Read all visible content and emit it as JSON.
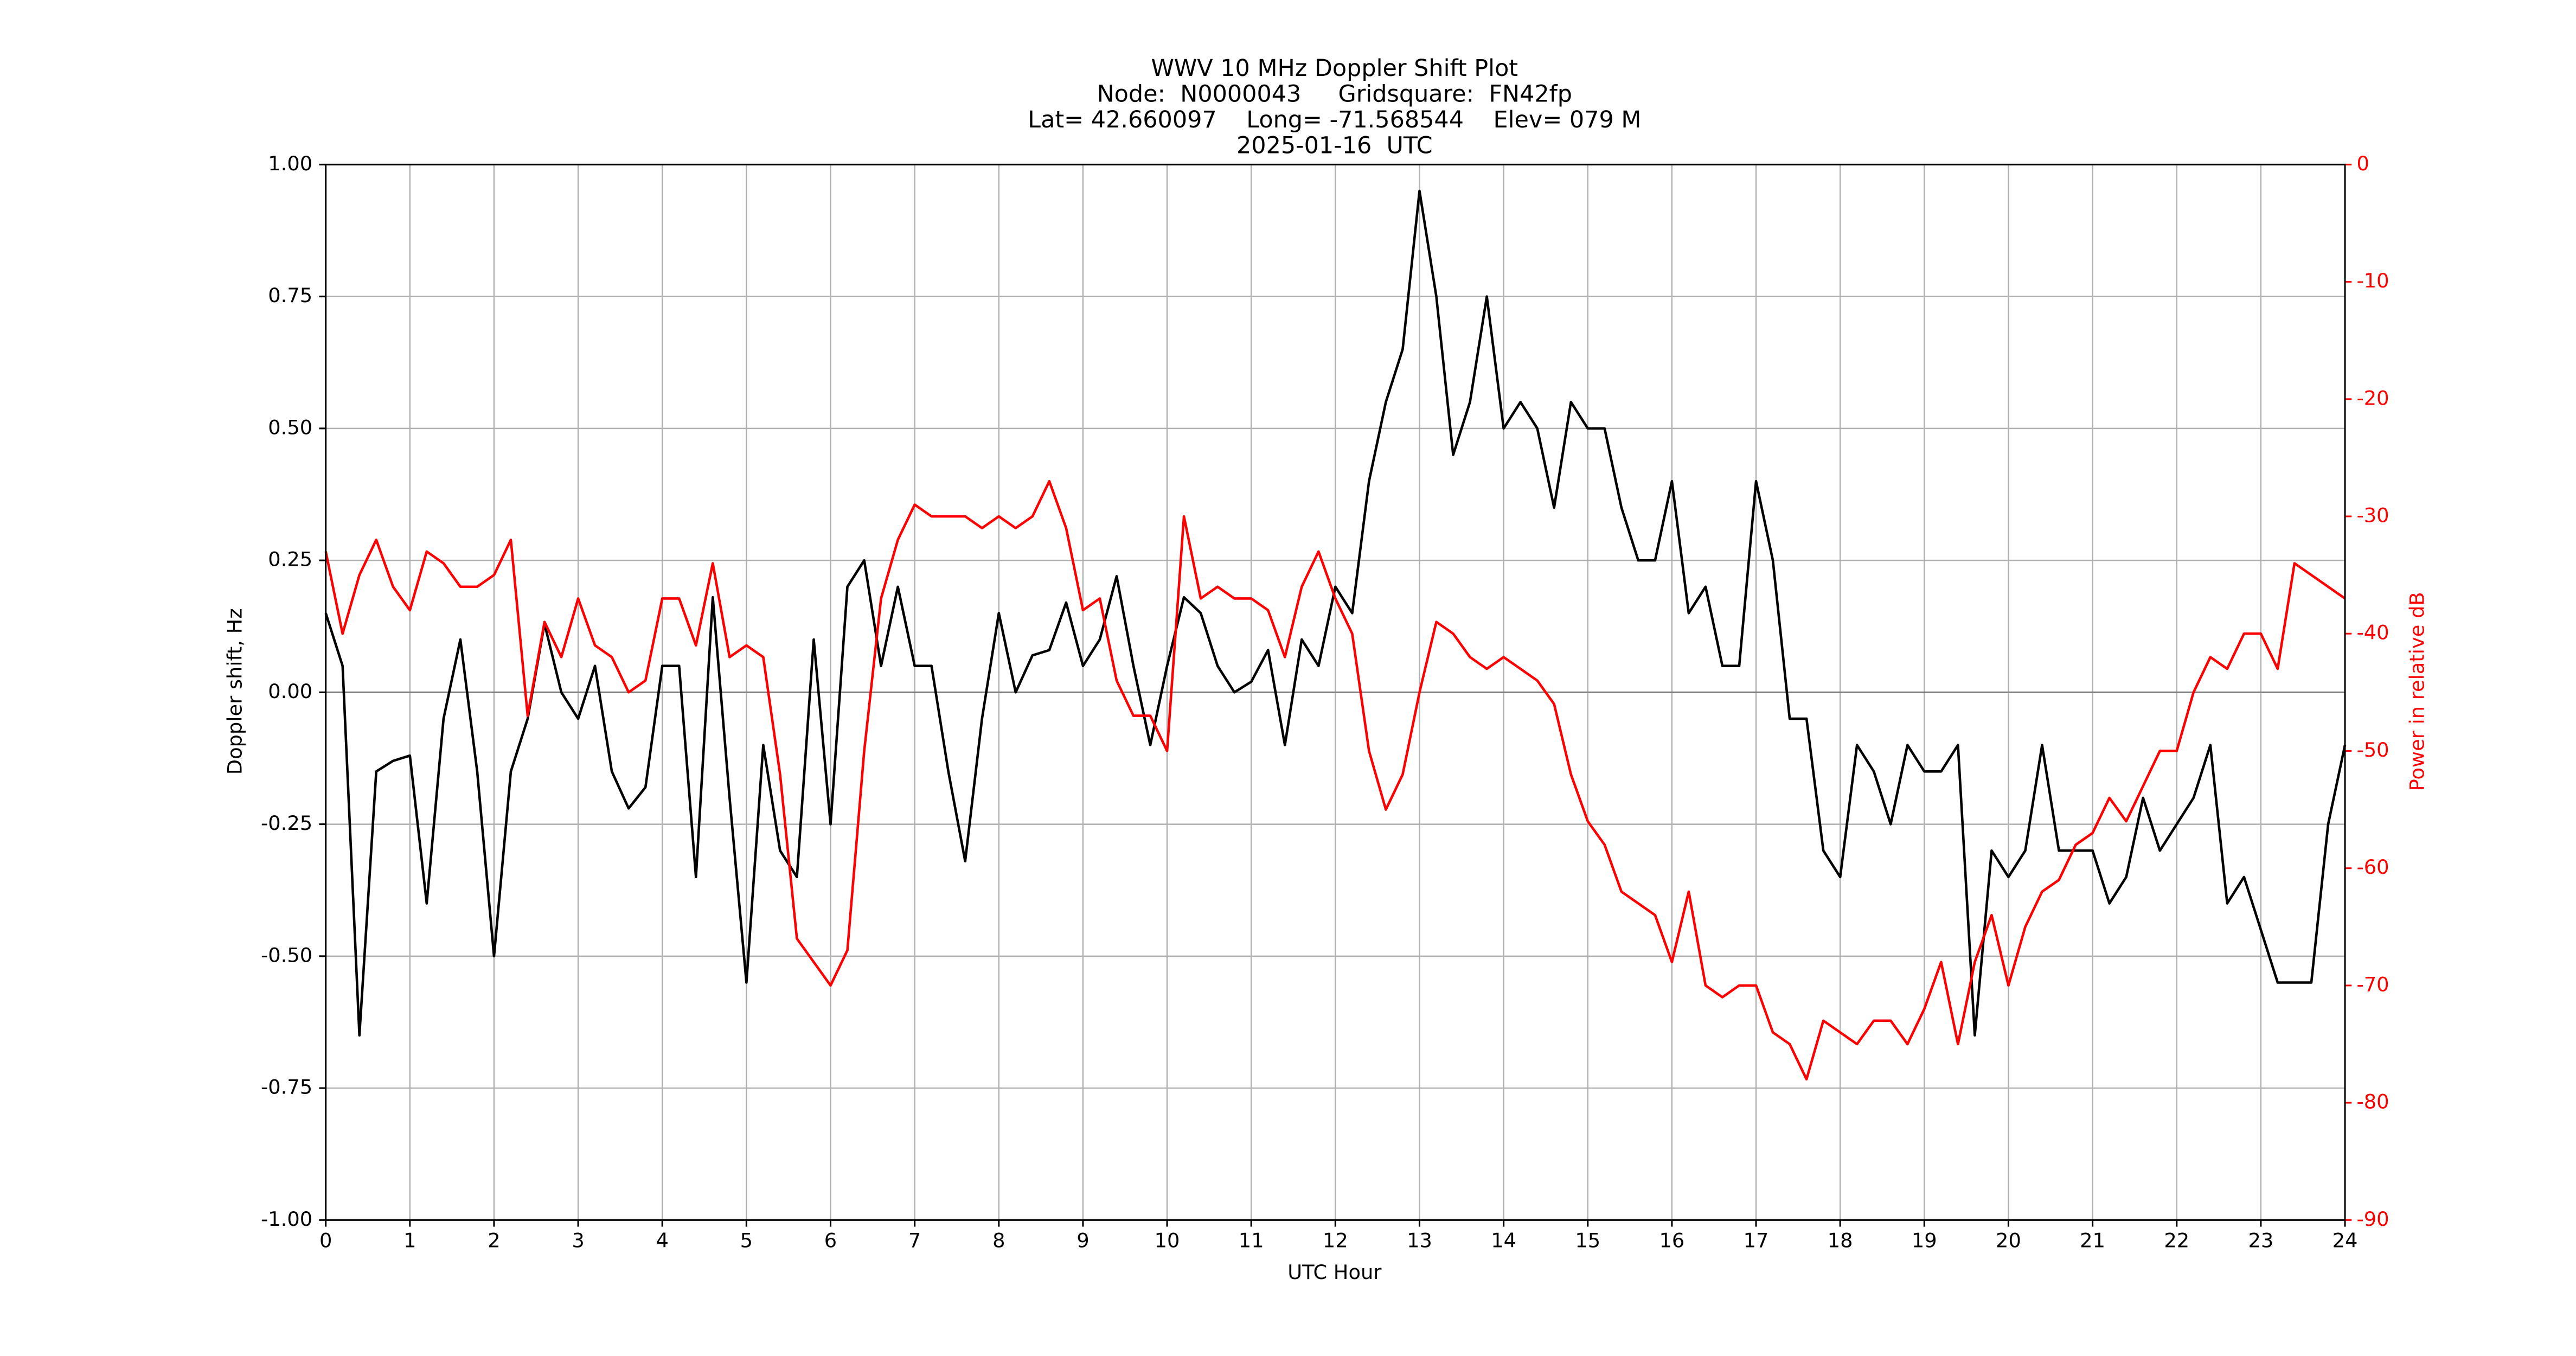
{
  "chart_data": {
    "type": "line",
    "title": [
      "WWV 10 MHz Doppler Shift Plot",
      "Node:  N0000043     Gridsquare:  FN42fp",
      "Lat= 42.660097    Long= -71.568544    Elev= 079 M",
      "2025-01-16  UTC"
    ],
    "xlabel": "UTC Hour",
    "ylabel": "Doppler shift, Hz",
    "y2label": "Power in relative dB",
    "x": [
      0,
      0.2,
      0.4,
      0.6,
      0.8,
      1,
      1.2,
      1.4,
      1.6,
      1.8,
      2,
      2.2,
      2.4,
      2.6,
      2.8,
      3,
      3.2,
      3.4,
      3.6,
      3.8,
      4,
      4.2,
      4.4,
      4.6,
      4.8,
      5,
      5.2,
      5.4,
      5.6,
      5.8,
      6,
      6.2,
      6.4,
      6.6,
      6.8,
      7,
      7.2,
      7.4,
      7.6,
      7.8,
      8,
      8.2,
      8.4,
      8.6,
      8.8,
      9,
      9.2,
      9.4,
      9.6,
      9.8,
      10,
      10.2,
      10.4,
      10.6,
      10.8,
      11,
      11.2,
      11.4,
      11.6,
      11.8,
      12,
      12.2,
      12.4,
      12.6,
      12.8,
      13,
      13.2,
      13.4,
      13.6,
      13.8,
      14,
      14.2,
      14.4,
      14.6,
      14.8,
      15,
      15.2,
      15.4,
      15.6,
      15.8,
      16,
      16.2,
      16.4,
      16.6,
      16.8,
      17,
      17.2,
      17.4,
      17.6,
      17.8,
      18,
      18.2,
      18.4,
      18.6,
      18.8,
      19,
      19.2,
      19.4,
      19.6,
      19.8,
      20,
      20.2,
      20.4,
      20.6,
      20.8,
      21,
      21.2,
      21.4,
      21.6,
      21.8,
      22,
      22.2,
      22.4,
      22.6,
      22.8,
      23,
      23.2,
      23.4,
      23.6,
      23.8,
      24
    ],
    "series": [
      {
        "color": "#000000",
        "values": [
          0.15,
          0.05,
          -0.65,
          -0.15,
          -0.13,
          -0.12,
          -0.4,
          -0.05,
          0.1,
          -0.15,
          -0.5,
          -0.15,
          -0.05,
          0.13,
          0,
          -0.05,
          0.05,
          -0.15,
          -0.22,
          -0.18,
          0.05,
          0.05,
          -0.35,
          0.18,
          -0.2,
          -0.55,
          -0.1,
          -0.3,
          -0.35,
          0.1,
          -0.25,
          0.2,
          0.25,
          0.05,
          0.2,
          0.05,
          0.05,
          -0.15,
          -0.32,
          -0.05,
          0.15,
          0,
          0.07,
          0.08,
          0.17,
          0.05,
          0.1,
          0.22,
          0.05,
          -0.1,
          0.05,
          0.18,
          0.15,
          0.05,
          0,
          0.02,
          0.08,
          -0.1,
          0.1,
          0.05,
          0.2,
          0.15,
          0.4,
          0.55,
          0.65,
          0.95,
          0.75,
          0.45,
          0.55,
          0.75,
          0.5,
          0.55,
          0.5,
          0.35,
          0.55,
          0.5,
          0.5,
          0.35,
          0.25,
          0.25,
          0.4,
          0.15,
          0.2,
          0.05,
          0.05,
          0.4,
          0.25,
          -0.05,
          -0.05,
          -0.3,
          -0.35,
          -0.1,
          -0.15,
          -0.25,
          -0.1,
          -0.15,
          -0.15,
          -0.1,
          -0.65,
          -0.3,
          -0.35,
          -0.3,
          -0.1,
          -0.3,
          -0.3,
          -0.3,
          -0.4,
          -0.35,
          -0.2,
          -0.3,
          -0.25,
          -0.2,
          -0.1,
          -0.4,
          -0.35,
          -0.45,
          -0.55,
          -0.55,
          -0.55,
          -0.25,
          -0.1
        ]
      },
      {
        "color": "#ff0000",
        "axis": "y2",
        "values": [
          -33,
          -40,
          -35,
          -32,
          -36,
          -38,
          -33,
          -34,
          -36,
          -36,
          -35,
          -32,
          -47,
          -39,
          -42,
          -37,
          -41,
          -42,
          -45,
          -44,
          -37,
          -37,
          -41,
          -34,
          -42,
          -41,
          -42,
          -52,
          -66,
          -68,
          -70,
          -67,
          -50,
          -37,
          -32,
          -29,
          -30,
          -30,
          -30,
          -31,
          -30,
          -31,
          -30,
          -27,
          -31,
          -38,
          -37,
          -44,
          -47,
          -47,
          -50,
          -30,
          -37,
          -36,
          -37,
          -37,
          -38,
          -42,
          -36,
          -33,
          -37,
          -40,
          -50,
          -55,
          -52,
          -45,
          -39,
          -40,
          -42,
          -43,
          -42,
          -43,
          -44,
          -46,
          -52,
          -56,
          -58,
          -62,
          -63,
          -64,
          -68,
          -62,
          -70,
          -71,
          -70,
          -70,
          -74,
          -75,
          -78,
          -73,
          -74,
          -75,
          -73,
          -73,
          -75,
          -72,
          -68,
          -75,
          -68,
          -64,
          -70,
          -65,
          -62,
          -61,
          -58,
          -57,
          -54,
          -56,
          -53,
          -50,
          -50,
          -45,
          -42,
          -43,
          -40,
          -40,
          -43,
          -34,
          -35,
          -36,
          -37
        ]
      }
    ],
    "xlim": [
      0,
      24
    ],
    "xticks": [
      0,
      1,
      2,
      3,
      4,
      5,
      6,
      7,
      8,
      9,
      10,
      11,
      12,
      13,
      14,
      15,
      16,
      17,
      18,
      19,
      20,
      21,
      22,
      23,
      24
    ],
    "ylim": [
      -1,
      1
    ],
    "yticks": [
      {
        "value": -1,
        "label": "-1.00"
      },
      {
        "value": -0.75,
        "label": "-0.75"
      },
      {
        "value": -0.5,
        "label": "-0.50"
      },
      {
        "value": -0.25,
        "label": "-0.25"
      },
      {
        "value": 0,
        "label": "0.00"
      },
      {
        "value": 0.25,
        "label": "0.25"
      },
      {
        "value": 0.5,
        "label": "0.50"
      },
      {
        "value": 0.75,
        "label": "0.75"
      },
      {
        "value": 1,
        "label": "1.00"
      }
    ],
    "y2lim": [
      -90,
      0
    ],
    "y2ticks": [
      -90,
      -80,
      -70,
      -60,
      -50,
      -40,
      -30,
      -20,
      -10,
      0
    ],
    "y2color": "#ff0000",
    "grid": true
  }
}
